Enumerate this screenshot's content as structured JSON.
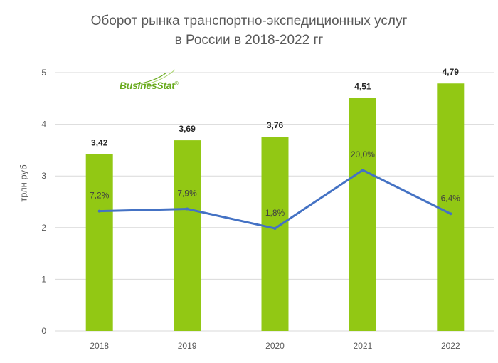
{
  "title_line1": "Оборот рынка транспортно-экспедиционных услуг",
  "title_line2": "в России в 2018-2022 гг",
  "ylabel": "трлн руб",
  "logo": "BusinesStat",
  "logo_mark": "®",
  "colors": {
    "bar": "#92c814",
    "line": "#4472c4",
    "grid": "#d9d9d9",
    "logo": "#6aab1f"
  },
  "chart_data": {
    "type": "bar",
    "title": "Оборот рынка транспортно-экспедиционных услуг в России в 2018-2022 гг",
    "ylabel": "трлн руб",
    "ylim": [
      0,
      5
    ],
    "yticks": [
      "0",
      "1",
      "2",
      "3",
      "4",
      "5"
    ],
    "grid": true,
    "categories": [
      "2018",
      "2019",
      "2020",
      "2021",
      "2022"
    ],
    "values": [
      3.42,
      3.69,
      3.76,
      4.51,
      4.79
    ],
    "value_labels": [
      "3,42",
      "3,69",
      "3,76",
      "4,51",
      "4,79"
    ],
    "growth": {
      "type": "line",
      "values": [
        7.2,
        7.9,
        1.8,
        20.0,
        6.4
      ],
      "labels": [
        "7,2%",
        "7,9%",
        "1,8%",
        "20,0%",
        "6,4%"
      ]
    }
  }
}
